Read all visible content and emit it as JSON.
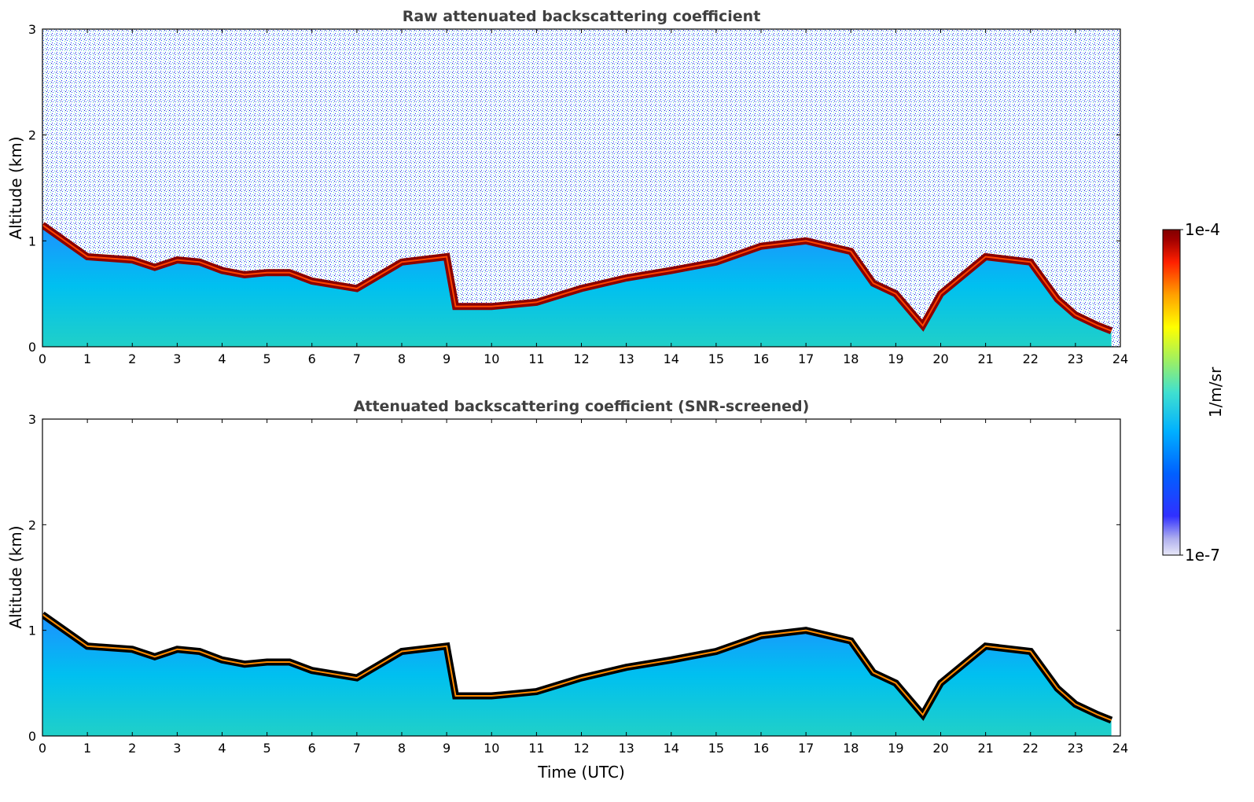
{
  "chart_data": [
    {
      "type": "heatmap",
      "title": "Raw attenuated backscattering coefficient",
      "xlabel": "",
      "ylabel": "Altitude (km)",
      "xlim": [
        0,
        24
      ],
      "ylim": [
        0,
        3
      ],
      "xticks": [
        "0",
        "1",
        "2",
        "3",
        "4",
        "5",
        "6",
        "7",
        "8",
        "9",
        "10",
        "11",
        "12",
        "13",
        "14",
        "15",
        "16",
        "17",
        "18",
        "19",
        "20",
        "21",
        "22",
        "23",
        "24"
      ],
      "yticks": [
        "0",
        "1",
        "2",
        "3"
      ],
      "layer_height_km": {
        "x": [
          0,
          0.5,
          1,
          2,
          2.5,
          3,
          3.5,
          4,
          4.5,
          5,
          5.5,
          6,
          7,
          8,
          9,
          9.2,
          10,
          11,
          12,
          13,
          14,
          15,
          16,
          17,
          18,
          18.5,
          19,
          19.6,
          20,
          21,
          22,
          22.6,
          23,
          23.5,
          23.8
        ],
        "y": [
          1.15,
          1.0,
          0.85,
          0.82,
          0.75,
          0.82,
          0.8,
          0.72,
          0.68,
          0.7,
          0.7,
          0.62,
          0.55,
          0.8,
          0.85,
          0.38,
          0.38,
          0.42,
          0.55,
          0.65,
          0.72,
          0.8,
          0.95,
          1.0,
          0.9,
          0.6,
          0.5,
          0.2,
          0.5,
          0.85,
          0.8,
          0.45,
          0.3,
          0.2,
          0.15
        ]
      }
    },
    {
      "type": "heatmap",
      "title": "Attenuated backscattering coefficient (SNR-screened)",
      "xlabel": "Time (UTC)",
      "ylabel": "Altitude (km)",
      "xlim": [
        0,
        24
      ],
      "ylim": [
        0,
        3
      ],
      "xticks": [
        "0",
        "1",
        "2",
        "3",
        "4",
        "5",
        "6",
        "7",
        "8",
        "9",
        "10",
        "11",
        "12",
        "13",
        "14",
        "15",
        "16",
        "17",
        "18",
        "19",
        "20",
        "21",
        "22",
        "23",
        "24"
      ],
      "yticks": [
        "0",
        "1",
        "2",
        "3"
      ],
      "layer_height_km": {
        "x": [
          0,
          0.5,
          1,
          2,
          2.5,
          3,
          3.5,
          4,
          4.5,
          5,
          5.5,
          6,
          7,
          8,
          9,
          9.2,
          10,
          11,
          12,
          13,
          14,
          15,
          16,
          17,
          18,
          18.5,
          19,
          19.6,
          20,
          21,
          22,
          22.6,
          23,
          23.5,
          23.8
        ],
        "y": [
          1.15,
          1.0,
          0.85,
          0.82,
          0.75,
          0.82,
          0.8,
          0.72,
          0.68,
          0.7,
          0.7,
          0.62,
          0.55,
          0.8,
          0.85,
          0.38,
          0.38,
          0.42,
          0.55,
          0.65,
          0.72,
          0.8,
          0.95,
          1.0,
          0.9,
          0.6,
          0.5,
          0.2,
          0.5,
          0.85,
          0.8,
          0.45,
          0.3,
          0.2,
          0.15
        ]
      }
    }
  ],
  "colorbar": {
    "label": "1/m/sr",
    "max_label": "1e-4",
    "min_label": "1e-7",
    "colors": [
      "#e8e8f8",
      "#b0b0ee",
      "#3030ff",
      "#0060ff",
      "#00b0ff",
      "#40e0d0",
      "#a0f060",
      "#ffff00",
      "#ffa000",
      "#ff2000",
      "#a00000",
      "#800000"
    ]
  }
}
